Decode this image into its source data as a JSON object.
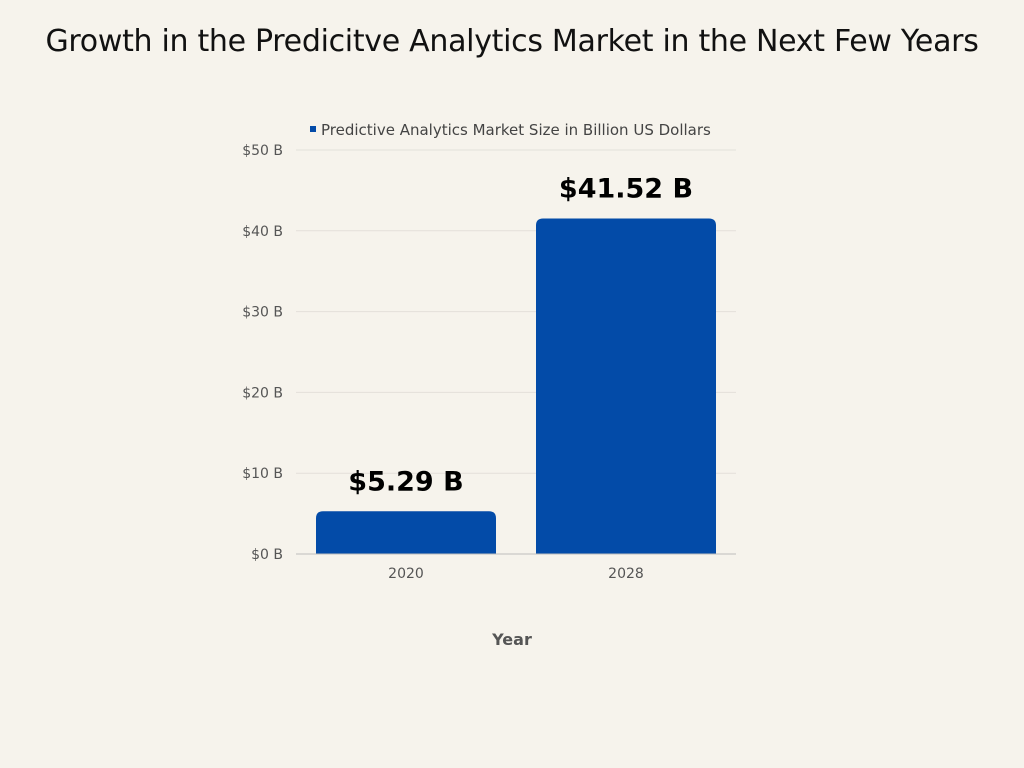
{
  "chart_data": {
    "type": "bar",
    "title": "Growth in the Predicitve Analytics Market in the Next Few Years",
    "categories": [
      "2020",
      "2028"
    ],
    "series": [
      {
        "name": "Predictive Analytics Market Size in Billion US Dollars",
        "values": [
          5.29,
          41.52
        ],
        "data_labels": [
          "$5.29 B",
          "$41.52 B"
        ],
        "color": "#034ba8"
      }
    ],
    "xlabel": "Year",
    "ylabel": "",
    "ylim": [
      0,
      50
    ],
    "yticks": [
      0,
      10,
      20,
      30,
      40,
      50
    ],
    "ytick_labels": [
      "$0 B",
      "$10 B",
      "$20 B",
      "$30 B",
      "$40 B",
      "$50 B"
    ],
    "grid": true,
    "legend_position": "top"
  },
  "colors": {
    "background": "#f6f3ec",
    "gridline": "#e3e0da",
    "baseline": "#bdbdbd"
  }
}
